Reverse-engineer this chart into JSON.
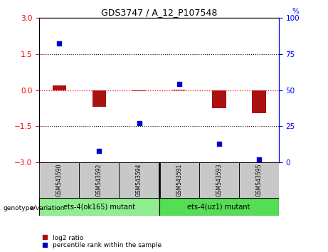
{
  "title": "GDS3747 / A_12_P107548",
  "samples": [
    "GSM543590",
    "GSM543592",
    "GSM543594",
    "GSM543591",
    "GSM543593",
    "GSM543595"
  ],
  "log2_ratio": [
    0.2,
    -0.7,
    -0.05,
    0.03,
    -0.75,
    -0.95
  ],
  "percentile_rank": [
    82,
    8,
    27,
    54,
    13,
    2
  ],
  "ylim_left": [
    -3,
    3
  ],
  "ylim_right": [
    0,
    100
  ],
  "yticks_left": [
    -3,
    -1.5,
    0,
    1.5,
    3
  ],
  "yticks_right": [
    0,
    25,
    50,
    75,
    100
  ],
  "group1_label": "ets-4(ok165) mutant",
  "group2_label": "ets-4(uz1) mutant",
  "group1_indices": [
    0,
    1,
    2
  ],
  "group2_indices": [
    3,
    4,
    5
  ],
  "genotype_label": "genotype/variation",
  "legend_log2": "log2 ratio",
  "legend_pct": "percentile rank within the sample",
  "bar_color": "#AA1111",
  "dot_color": "#0000CC",
  "group1_color": "#90EE90",
  "group2_color": "#55DD55",
  "sample_bg_color": "#C8C8C8",
  "bar_width": 0.35
}
